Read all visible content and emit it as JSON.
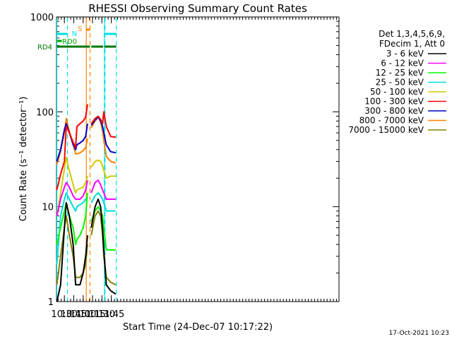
{
  "chart_data": {
    "type": "line",
    "title": "RHESSI Observing Summary Count Rates",
    "xlabel": "Start Time (24-Dec-07 10:17:22)",
    "ylabel": "Count Rate (s⁻¹ detector⁻¹)",
    "ylog": true,
    "ylim": [
      1,
      1000
    ],
    "xlim_minutes_of_day": [
      617.4,
      1069.0
    ],
    "xlim_clock": [
      "10:17:22",
      "11:53:30"
    ],
    "x_ticks": [
      "10:30",
      "10:45",
      "11:00",
      "11:15",
      "11:30",
      "11:45"
    ],
    "y_ticks": [
      "1",
      "10",
      "100",
      "1000"
    ],
    "footer_timestamp": "17-Oct-2021 10:23",
    "legend": {
      "placement": "right",
      "header": [
        "Det 1,3,4,5,6,9,",
        "FDecim 1, Att 0"
      ]
    },
    "flags": [
      {
        "label": "RD0",
        "color": "#00aa00",
        "segments": [
          [
            "10:18",
            "10:26"
          ]
        ]
      },
      {
        "label": "RD4",
        "color": "#007700",
        "segments": [
          [
            "10:18",
            "10:49"
          ],
          [
            "10:49",
            "11:11"
          ],
          [
            "11:13",
            "11:32"
          ],
          [
            "11:34",
            "11:53"
          ]
        ]
      },
      {
        "label": "N",
        "color": "#00e0e0",
        "segments": [
          [
            "10:18",
            "10:35"
          ],
          [
            "11:35",
            "11:53"
          ]
        ]
      },
      {
        "label": "S",
        "color": "#ff8000",
        "segments": [
          [
            "11:05",
            "11:11"
          ]
        ]
      }
    ],
    "vlines": [
      {
        "time": "10:35",
        "color": "#00e0e0",
        "style": "dashed"
      },
      {
        "time": "11:35",
        "color": "#00e0e0",
        "style": "dashed"
      },
      {
        "time": "11:53",
        "color": "#00e0e0",
        "style": "dashed"
      },
      {
        "time": "10:18",
        "color": "#00e0e0",
        "style": "solid"
      },
      {
        "time": "11:34",
        "color": "#00e0e0",
        "style": "solid"
      },
      {
        "time": "11:05",
        "color": "#ff8000",
        "style": "solid"
      },
      {
        "time": "11:11",
        "color": "#ff8000",
        "style": "dashed"
      }
    ],
    "time_points": [
      "10:18",
      "10:24",
      "10:30",
      "10:33",
      "10:38",
      "10:44",
      "10:48",
      "10:50",
      "10:55",
      "11:00",
      "11:04",
      "11:07",
      "11:11",
      "11:13",
      "11:19",
      "11:24",
      "11:28",
      "11:31",
      "11:33",
      "11:37",
      "11:44",
      "11:52"
    ],
    "series": [
      {
        "name": "3 - 6 keV",
        "color": "#000000",
        "values": [
          1.0,
          1.5,
          6.0,
          11.0,
          8.0,
          4.0,
          1.5,
          1.5,
          1.5,
          2.0,
          3.0,
          5.0,
          null,
          6.0,
          10.0,
          12.0,
          10.0,
          6.0,
          3.5,
          1.5,
          1.3,
          1.2
        ]
      },
      {
        "name": "6 - 12 keV",
        "color": "#ff00ff",
        "values": [
          8.0,
          12.0,
          16.0,
          18.0,
          16.0,
          13.0,
          12.0,
          12.0,
          12.0,
          13.0,
          15.0,
          19.0,
          null,
          14.0,
          18.0,
          19.0,
          17.0,
          15.0,
          14.0,
          12.0,
          12.0,
          12.0
        ]
      },
      {
        "name": "12 - 25 keV",
        "color": "#00ff00",
        "values": [
          4.0,
          6.0,
          9.0,
          11.0,
          8.0,
          6.0,
          4.0,
          4.5,
          5.0,
          6.0,
          8.0,
          14.0,
          null,
          7.0,
          9.0,
          10.0,
          9.0,
          8.0,
          6.0,
          3.5,
          3.5,
          3.5
        ]
      },
      {
        "name": "25 - 50 keV",
        "color": "#00dddd",
        "values": [
          2.5,
          8.0,
          12.0,
          14.0,
          12.0,
          10.0,
          9.0,
          10.0,
          10.5,
          11.0,
          12.0,
          13.0,
          null,
          11.0,
          13.0,
          14.0,
          13.0,
          12.0,
          11.0,
          9.0,
          9.0,
          9.0
        ]
      },
      {
        "name": "50 - 100 keV",
        "color": "#cccc00",
        "values": [
          8.0,
          14.0,
          25.0,
          33.0,
          24.0,
          17.0,
          14.0,
          15.0,
          15.5,
          16.0,
          18.0,
          21.0,
          null,
          26.0,
          30.0,
          31.0,
          30.0,
          27.0,
          24.0,
          20.0,
          21.0,
          21.0
        ]
      },
      {
        "name": "100 - 300 keV",
        "color": "#ff0000",
        "values": [
          15.0,
          22.0,
          30.0,
          70.0,
          60.0,
          48.0,
          42.0,
          70.0,
          75.0,
          80.0,
          88.0,
          120.0,
          null,
          75.0,
          85.0,
          90.0,
          83.0,
          75.0,
          100.0,
          70.0,
          55.0,
          54.0
        ]
      },
      {
        "name": "300 - 800 keV",
        "color": "#0000cc",
        "values": [
          30.0,
          40.0,
          65.0,
          75.0,
          60.0,
          45.0,
          40.0,
          45.0,
          47.0,
          50.0,
          55.0,
          75.0,
          null,
          72.0,
          82.0,
          88.0,
          80.0,
          70.0,
          60.0,
          45.0,
          38.0,
          37.0
        ]
      },
      {
        "name": "800 - 7000 keV",
        "color": "#ff8000",
        "values": [
          28.0,
          38.0,
          60.0,
          85.0,
          62.0,
          45.0,
          36.0,
          36.0,
          37.0,
          39.0,
          42.0,
          52.0,
          null,
          68.0,
          80.0,
          88.0,
          78.0,
          62.0,
          50.0,
          34.0,
          30.0,
          29.0
        ]
      },
      {
        "name": "7000 - 15000 keV",
        "color": "#808000",
        "values": [
          1.5,
          3.0,
          6.0,
          8.0,
          5.0,
          3.0,
          1.8,
          1.8,
          1.8,
          2.0,
          2.5,
          4.0,
          null,
          5.0,
          8.0,
          9.0,
          8.0,
          5.0,
          3.0,
          1.8,
          1.6,
          1.5
        ]
      }
    ]
  }
}
